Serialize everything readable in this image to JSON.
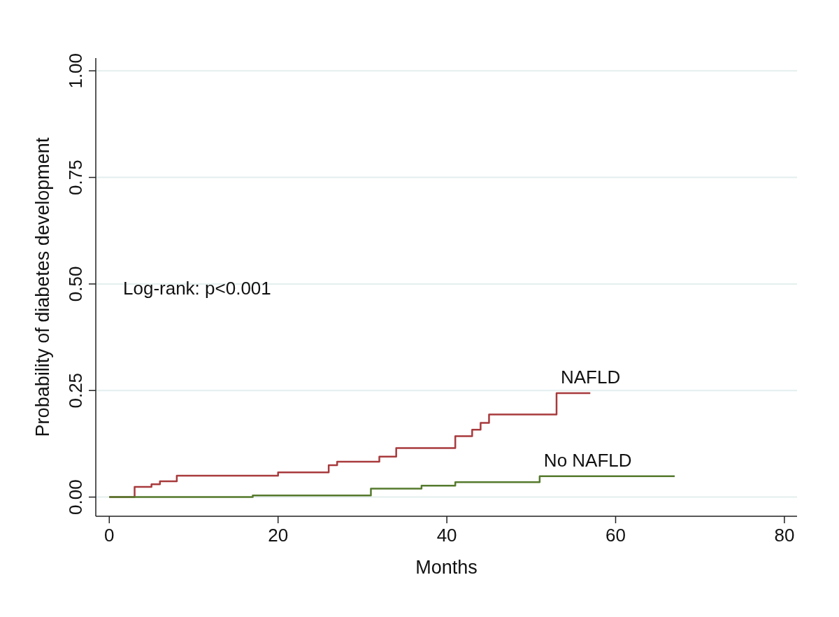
{
  "chart_data": {
    "type": "step",
    "xlabel": "Months",
    "ylabel": "Probability of diabetes development",
    "annotations": [
      "Log-rank: p<0.001"
    ],
    "xlim": [
      -1.6,
      81.5
    ],
    "ylim": [
      -0.045,
      1.03
    ],
    "xticks": [
      0,
      20,
      40,
      60,
      80
    ],
    "yticks": [
      {
        "value": 0,
        "label": "0.00"
      },
      {
        "value": 0.25,
        "label": "0.25"
      },
      {
        "value": 0.5,
        "label": "0.50"
      },
      {
        "value": 0.75,
        "label": "0.75"
      },
      {
        "value": 1,
        "label": "1.00"
      }
    ],
    "grid": "y",
    "legend": false,
    "marker": "none",
    "line_style": "solid",
    "series": [
      {
        "name": "NAFLD",
        "color": "#a83a3c",
        "x": [
          0,
          3,
          5,
          6,
          8,
          20,
          26,
          27,
          32,
          34,
          41,
          43,
          44,
          45,
          53,
          57
        ],
        "values": [
          0,
          0.024,
          0.03,
          0.037,
          0.05,
          0.058,
          0.075,
          0.083,
          0.095,
          0.115,
          0.143,
          0.158,
          0.174,
          0.194,
          0.244,
          0.244
        ]
      },
      {
        "name": "No NAFLD",
        "color": "#557a2c",
        "x": [
          0,
          17,
          31,
          37,
          41,
          51,
          67
        ],
        "values": [
          0,
          0.004,
          0.02,
          0.027,
          0.035,
          0.049,
          0.049
        ]
      }
    ]
  }
}
